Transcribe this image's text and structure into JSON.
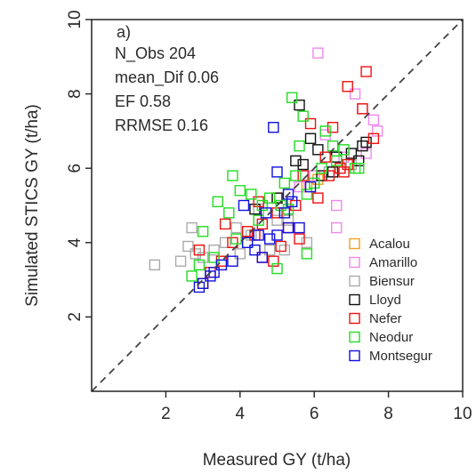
{
  "chart_data": {
    "type": "scatter",
    "panel_label": "a)",
    "xlabel": "Measured GY (t/ha)",
    "ylabel": "Simulated STICS GY (t/ha)",
    "xlim": [
      0,
      10
    ],
    "ylim": [
      0,
      10
    ],
    "xticks": [
      2,
      4,
      6,
      8,
      10
    ],
    "yticks": [
      2,
      4,
      6,
      8,
      10
    ],
    "grid": false,
    "reference_line": "1:1 dashed",
    "legend_position": "bottom-right",
    "annotations": [
      "N_Obs 204",
      "mean_Dif 0.06",
      "EF 0.58",
      "RRMSE 0.16"
    ],
    "series": [
      {
        "name": "Acalou",
        "color": "#f0a020",
        "points": [
          [
            5.0,
            5.2
          ],
          [
            5.8,
            5.5
          ],
          [
            6.1,
            5.7
          ]
        ]
      },
      {
        "name": "Amarillo",
        "color": "#ee88ee",
        "points": [
          [
            6.1,
            9.1
          ],
          [
            7.1,
            8.0
          ],
          [
            7.3,
            7.6
          ],
          [
            7.6,
            7.3
          ],
          [
            7.7,
            7.0
          ],
          [
            7.4,
            6.4
          ],
          [
            6.6,
            5.0
          ],
          [
            6.6,
            4.4
          ],
          [
            6.0,
            5.8
          ],
          [
            6.3,
            6.9
          ],
          [
            6.8,
            6.3
          ],
          [
            5.6,
            5.5
          ]
        ]
      },
      {
        "name": "Biensur",
        "color": "#aaaaaa",
        "points": [
          [
            1.7,
            3.4
          ],
          [
            2.4,
            3.5
          ],
          [
            2.6,
            3.9
          ],
          [
            2.7,
            4.4
          ],
          [
            3.0,
            3.6
          ],
          [
            3.3,
            3.8
          ],
          [
            3.6,
            4.0
          ],
          [
            4.0,
            3.7
          ],
          [
            4.3,
            4.2
          ],
          [
            4.8,
            3.8
          ],
          [
            5.2,
            3.8
          ],
          [
            5.3,
            4.6
          ],
          [
            5.8,
            4.0
          ],
          [
            5.0,
            4.6
          ],
          [
            4.5,
            4.9
          ],
          [
            6.4,
            5.9
          ],
          [
            7.0,
            6.1
          ],
          [
            2.8,
            3.7
          ],
          [
            3.9,
            4.4
          ]
        ]
      },
      {
        "name": "Lloyd",
        "color": "#111111",
        "points": [
          [
            5.6,
            7.7
          ],
          [
            5.9,
            6.8
          ],
          [
            6.1,
            6.5
          ],
          [
            6.6,
            6.3
          ],
          [
            7.0,
            6.4
          ],
          [
            7.3,
            6.6
          ],
          [
            7.4,
            6.7
          ],
          [
            5.7,
            6.1
          ],
          [
            6.2,
            5.8
          ],
          [
            5.0,
            5.2
          ],
          [
            6.5,
            5.9
          ],
          [
            7.2,
            6.2
          ],
          [
            5.5,
            6.2
          ],
          [
            4.4,
            4.9
          ]
        ]
      },
      {
        "name": "Nefer",
        "color": "#ee1111",
        "points": [
          [
            7.4,
            8.6
          ],
          [
            6.9,
            8.2
          ],
          [
            7.3,
            7.6
          ],
          [
            6.5,
            7.1
          ],
          [
            5.9,
            7.2
          ],
          [
            6.7,
            6.0
          ],
          [
            6.4,
            5.8
          ],
          [
            5.5,
            5.0
          ],
          [
            5.0,
            4.8
          ],
          [
            4.6,
            4.5
          ],
          [
            4.2,
            4.3
          ],
          [
            3.8,
            4.0
          ],
          [
            3.5,
            3.5
          ],
          [
            3.2,
            3.2
          ],
          [
            3.0,
            2.9
          ],
          [
            2.9,
            3.8
          ],
          [
            4.4,
            4.2
          ],
          [
            5.1,
            3.9
          ],
          [
            5.6,
            4.1
          ],
          [
            4.6,
            3.6
          ],
          [
            6.9,
            6.1
          ],
          [
            6.3,
            6.3
          ],
          [
            7.6,
            6.8
          ],
          [
            4.5,
            5.1
          ],
          [
            5.7,
            5.8
          ],
          [
            3.6,
            4.5
          ],
          [
            4.9,
            3.5
          ],
          [
            5.3,
            4.4
          ],
          [
            6.1,
            5.2
          ],
          [
            6.8,
            5.9
          ]
        ]
      },
      {
        "name": "Neodur",
        "color": "#22dd22",
        "points": [
          [
            5.4,
            7.9
          ],
          [
            5.7,
            7.4
          ],
          [
            6.3,
            7.0
          ],
          [
            5.6,
            6.6
          ],
          [
            6.2,
            6.0
          ],
          [
            6.8,
            6.5
          ],
          [
            7.2,
            6.0
          ],
          [
            3.8,
            5.8
          ],
          [
            4.0,
            5.4
          ],
          [
            3.4,
            5.1
          ],
          [
            3.7,
            4.8
          ],
          [
            4.3,
            5.3
          ],
          [
            4.8,
            5.2
          ],
          [
            5.2,
            5.6
          ],
          [
            5.5,
            5.8
          ],
          [
            5.8,
            5.3
          ],
          [
            6.0,
            5.6
          ],
          [
            4.5,
            4.6
          ],
          [
            3.0,
            4.3
          ],
          [
            2.9,
            3.4
          ],
          [
            2.7,
            3.1
          ],
          [
            3.3,
            3.6
          ],
          [
            4.2,
            4.0
          ],
          [
            5.0,
            3.3
          ],
          [
            5.8,
            3.7
          ],
          [
            6.6,
            6.2
          ],
          [
            4.6,
            5.0
          ],
          [
            5.1,
            5.0
          ],
          [
            3.9,
            4.1
          ],
          [
            7.1,
            6.0
          ],
          [
            6.5,
            6.6
          ],
          [
            5.3,
            4.9
          ]
        ]
      },
      {
        "name": "Montsegur",
        "color": "#1111dd",
        "points": [
          [
            4.9,
            7.1
          ],
          [
            5.0,
            5.9
          ],
          [
            5.3,
            5.3
          ],
          [
            4.7,
            4.8
          ],
          [
            4.5,
            4.2
          ],
          [
            4.4,
            3.8
          ],
          [
            4.8,
            4.1
          ],
          [
            3.8,
            3.5
          ],
          [
            3.5,
            3.4
          ],
          [
            3.2,
            3.1
          ],
          [
            3.0,
            2.9
          ],
          [
            2.9,
            2.8
          ],
          [
            5.3,
            4.4
          ],
          [
            5.6,
            4.4
          ],
          [
            5.0,
            4.2
          ],
          [
            4.6,
            3.6
          ],
          [
            5.4,
            5.1
          ],
          [
            5.9,
            5.5
          ],
          [
            4.2,
            4.0
          ],
          [
            4.1,
            5.0
          ],
          [
            5.2,
            4.8
          ],
          [
            3.3,
            3.2
          ]
        ]
      }
    ]
  }
}
